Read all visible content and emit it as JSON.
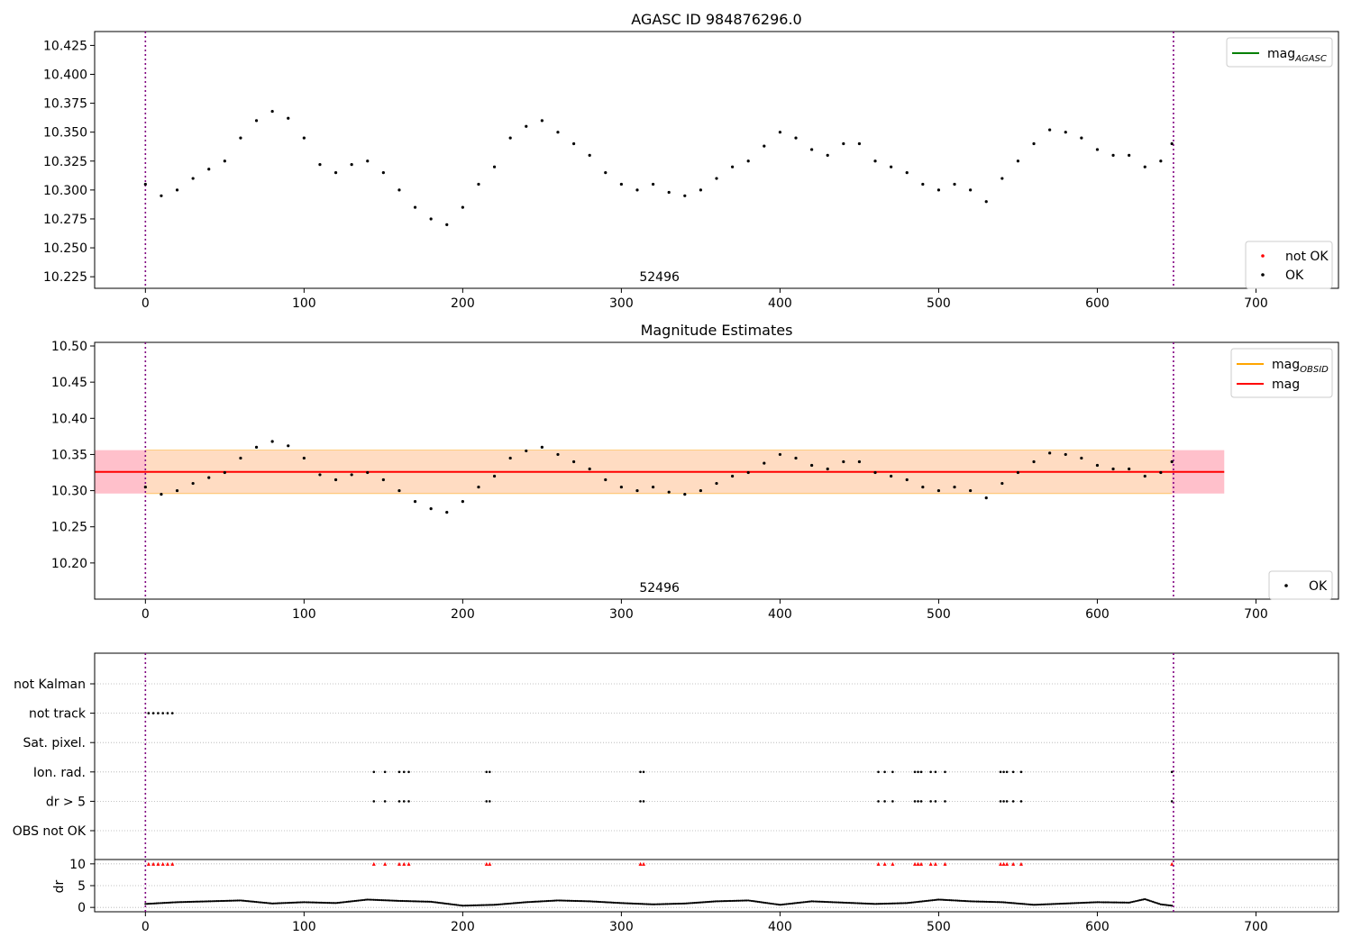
{
  "chart_data": [
    {
      "type": "scatter",
      "title": "AGASC ID 984876296.0",
      "xlim": [
        -32,
        752
      ],
      "ylim": [
        10.215,
        10.437
      ],
      "xticks": [
        0,
        100,
        200,
        300,
        400,
        500,
        600,
        700
      ],
      "yticks": [
        "10.225",
        "10.250",
        "10.275",
        "10.300",
        "10.325",
        "10.350",
        "10.375",
        "10.400",
        "10.425"
      ],
      "vlines": [
        0,
        648
      ],
      "annotation": {
        "text": "52496",
        "x": 324
      },
      "legend_lines": [
        {
          "label_main": "mag",
          "label_sub": "AGASC",
          "color": "#008000"
        }
      ],
      "legend_markers": [
        {
          "label": "not OK",
          "color": "#ff0000"
        },
        {
          "label": "OK",
          "color": "#000000"
        }
      ],
      "series": [
        {
          "name": "OK",
          "color": "#000000",
          "x": [
            0,
            10,
            20,
            30,
            40,
            50,
            60,
            70,
            80,
            90,
            100,
            110,
            120,
            130,
            140,
            150,
            160,
            170,
            180,
            190,
            200,
            210,
            220,
            230,
            240,
            250,
            260,
            270,
            280,
            290,
            300,
            310,
            320,
            330,
            340,
            350,
            360,
            370,
            380,
            390,
            400,
            410,
            420,
            430,
            440,
            450,
            460,
            470,
            480,
            490,
            500,
            510,
            520,
            530,
            540,
            550,
            560,
            570,
            580,
            590,
            600,
            610,
            620,
            630,
            640,
            647
          ],
          "y": [
            10.305,
            10.295,
            10.3,
            10.31,
            10.318,
            10.325,
            10.345,
            10.36,
            10.368,
            10.362,
            10.345,
            10.322,
            10.315,
            10.322,
            10.325,
            10.315,
            10.3,
            10.285,
            10.275,
            10.27,
            10.285,
            10.305,
            10.32,
            10.345,
            10.355,
            10.36,
            10.35,
            10.34,
            10.33,
            10.315,
            10.305,
            10.3,
            10.305,
            10.298,
            10.295,
            10.3,
            10.31,
            10.32,
            10.325,
            10.338,
            10.35,
            10.345,
            10.335,
            10.33,
            10.34,
            10.34,
            10.325,
            10.32,
            10.315,
            10.305,
            10.3,
            10.305,
            10.3,
            10.29,
            10.31,
            10.325,
            10.34,
            10.352,
            10.35,
            10.345,
            10.335,
            10.33,
            10.33,
            10.32,
            10.325,
            10.34
          ]
        }
      ]
    },
    {
      "type": "scatter",
      "title": "Magnitude Estimates",
      "xlim": [
        -32,
        752
      ],
      "ylim": [
        10.15,
        10.505
      ],
      "xticks": [
        0,
        100,
        200,
        300,
        400,
        500,
        600,
        700
      ],
      "yticks": [
        "10.20",
        "10.25",
        "10.30",
        "10.35",
        "10.40",
        "10.45",
        "10.50"
      ],
      "vlines": [
        0,
        648
      ],
      "annotation": {
        "text": "52496",
        "x": 324
      },
      "hline": {
        "y": 10.326,
        "color": "#ff0000",
        "xmin": -32,
        "xmax": 680
      },
      "band_outer": {
        "y0": 10.296,
        "y1": 10.356,
        "color": "#ffc0cb"
      },
      "band_inner": {
        "y0": 10.296,
        "y1": 10.356,
        "color": "#ffdcc2",
        "xmin": 0,
        "xmax": 647
      },
      "legend_lines": [
        {
          "label_main": "mag",
          "label_sub": "OBSID",
          "color": "#ffa500"
        },
        {
          "label_main": "mag",
          "label_sub": "",
          "color": "#ff0000"
        }
      ],
      "legend_markers": [
        {
          "label": "OK",
          "color": "#000000"
        }
      ],
      "series": [
        {
          "name": "OK",
          "color": "#000000",
          "x": [
            0,
            10,
            20,
            30,
            40,
            50,
            60,
            70,
            80,
            90,
            100,
            110,
            120,
            130,
            140,
            150,
            160,
            170,
            180,
            190,
            200,
            210,
            220,
            230,
            240,
            250,
            260,
            270,
            280,
            290,
            300,
            310,
            320,
            330,
            340,
            350,
            360,
            370,
            380,
            390,
            400,
            410,
            420,
            430,
            440,
            450,
            460,
            470,
            480,
            490,
            500,
            510,
            520,
            530,
            540,
            550,
            560,
            570,
            580,
            590,
            600,
            610,
            620,
            630,
            640,
            647
          ],
          "y": [
            10.305,
            10.295,
            10.3,
            10.31,
            10.318,
            10.325,
            10.345,
            10.36,
            10.368,
            10.362,
            10.345,
            10.322,
            10.315,
            10.322,
            10.325,
            10.315,
            10.3,
            10.285,
            10.275,
            10.27,
            10.285,
            10.305,
            10.32,
            10.345,
            10.355,
            10.36,
            10.35,
            10.34,
            10.33,
            10.315,
            10.305,
            10.3,
            10.305,
            10.298,
            10.295,
            10.3,
            10.31,
            10.32,
            10.325,
            10.338,
            10.35,
            10.345,
            10.335,
            10.33,
            10.34,
            10.34,
            10.325,
            10.32,
            10.315,
            10.305,
            10.3,
            10.305,
            10.3,
            10.29,
            10.31,
            10.325,
            10.34,
            10.352,
            10.35,
            10.345,
            10.335,
            10.33,
            10.33,
            10.32,
            10.325,
            10.34
          ]
        }
      ]
    },
    {
      "type": "scatter",
      "title": "",
      "xlim": [
        -32,
        752
      ],
      "xticks": [
        0,
        100,
        200,
        300,
        400,
        500,
        600,
        700
      ],
      "vlines": [
        0,
        648
      ],
      "flag_rows": [
        {
          "label": "not Kalman",
          "x": []
        },
        {
          "label": "not track",
          "x": [
            2,
            5,
            8,
            11,
            14,
            17
          ]
        },
        {
          "label": "Sat. pixel.",
          "x": []
        },
        {
          "label": "Ion. rad.",
          "x": [
            144,
            151,
            160,
            163,
            166,
            215,
            217,
            312,
            314,
            462,
            466,
            471,
            485,
            487,
            489,
            495,
            498,
            504,
            539,
            541,
            543,
            547,
            552,
            647
          ]
        },
        {
          "label": "dr > 5",
          "x": [
            144,
            151,
            160,
            163,
            166,
            215,
            217,
            312,
            314,
            462,
            466,
            471,
            485,
            487,
            489,
            495,
            498,
            504,
            539,
            541,
            543,
            547,
            552,
            647
          ]
        },
        {
          "label": "OBS not OK",
          "x": []
        }
      ],
      "dr": {
        "ylabel": "dr",
        "yticks": [
          "0",
          "5",
          "10"
        ],
        "ylim": [
          -1,
          11
        ],
        "flagged_x": [
          2,
          5,
          8,
          11,
          14,
          17,
          144,
          151,
          160,
          163,
          166,
          215,
          217,
          312,
          314,
          462,
          466,
          471,
          485,
          487,
          489,
          495,
          498,
          504,
          539,
          541,
          543,
          547,
          552,
          647
        ],
        "x": [
          0,
          20,
          40,
          60,
          80,
          100,
          120,
          140,
          160,
          180,
          200,
          220,
          240,
          260,
          280,
          300,
          320,
          340,
          360,
          380,
          400,
          420,
          440,
          460,
          480,
          500,
          520,
          540,
          560,
          580,
          600,
          620,
          630,
          640,
          647
        ],
        "y": [
          0.8,
          1.2,
          1.4,
          1.6,
          0.9,
          1.2,
          1.0,
          1.8,
          1.5,
          1.3,
          0.4,
          0.6,
          1.2,
          1.6,
          1.4,
          1.0,
          0.7,
          0.9,
          1.4,
          1.6,
          0.6,
          1.4,
          1.1,
          0.8,
          1.0,
          1.8,
          1.4,
          1.2,
          0.6,
          0.9,
          1.2,
          1.1,
          1.9,
          0.7,
          0.4
        ]
      }
    }
  ]
}
